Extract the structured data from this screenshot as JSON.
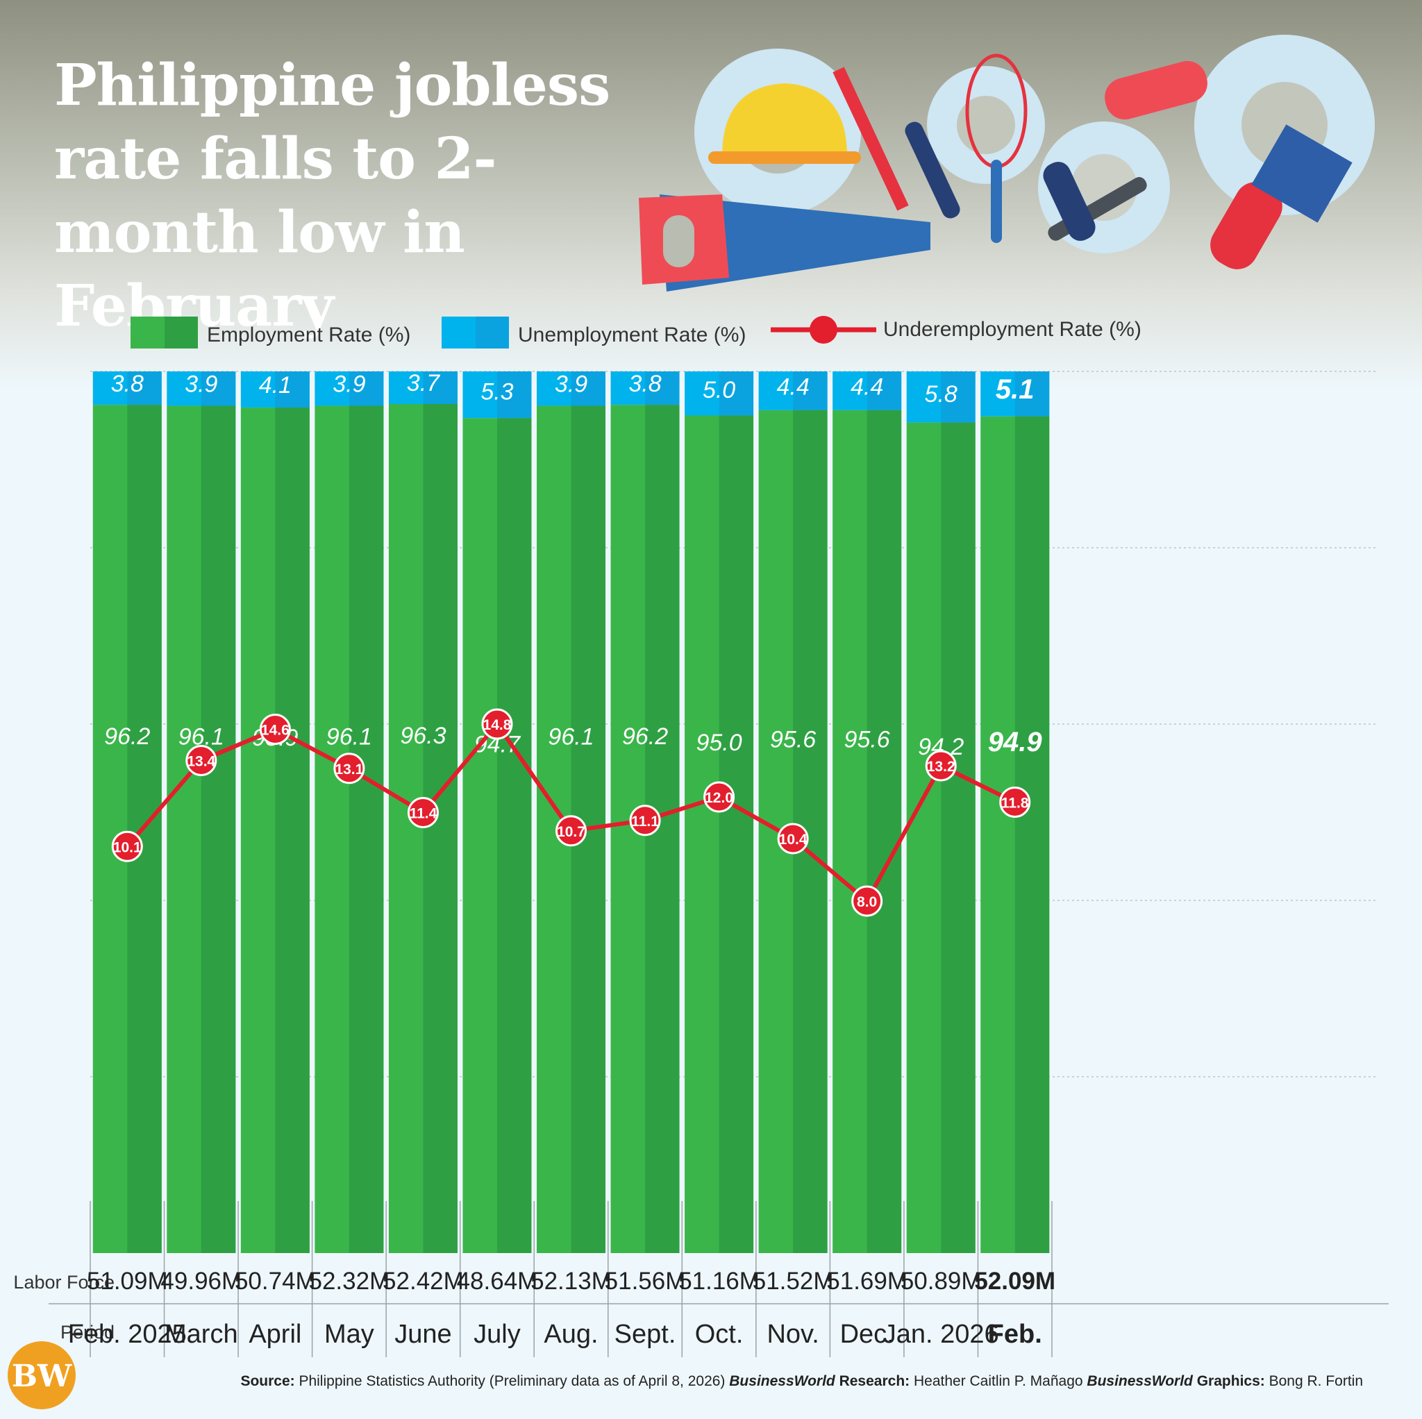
{
  "title": "Philippine jobless rate falls to 2-month low in February",
  "legend": {
    "employment": "Employment  Rate (%)",
    "unemployment": "Unemployment Rate (%)",
    "underemployment": "Underemployment Rate (%)"
  },
  "row_labels": {
    "labor_force": "Labor Force",
    "period": "Period"
  },
  "footer": {
    "source_label": "Source:",
    "source_text": " Philippine Statistics Authority (Preliminary data as of April 8, 2026)",
    "research_brand": "BusinessWorld",
    "research_label": " Research:",
    "research_text": " Heather Caitlin P. Mañago",
    "graphics_brand": "BusinessWorld",
    "graphics_label": " Graphics:",
    "graphics_text": " Bong R. Fortin"
  },
  "logo_text": "BW",
  "colors": {
    "employment": "#3ab54a",
    "employment_dark": "#2ea043",
    "unemployment": "#00b3ec",
    "unemployment_dark": "#0aa3e0",
    "underemployment": "#e31e2d",
    "logo": "#f0a020"
  },
  "chart_data": {
    "type": "bar",
    "stacked": true,
    "categories": [
      "Feb. 2025",
      "March",
      "April",
      "May",
      "June",
      "July",
      "Aug.",
      "Sept.",
      "Oct.",
      "Nov.",
      "Dec.",
      "Jan. 2026",
      "Feb."
    ],
    "labor_force": [
      "51.09M",
      "49.96M",
      "50.74M",
      "52.32M",
      "52.42M",
      "48.64M",
      "52.13M",
      "51.56M",
      "51.16M",
      "51.52M",
      "51.69M",
      "50.89M",
      "52.09M"
    ],
    "series": [
      {
        "name": "Employment  Rate (%)",
        "type": "bar",
        "values": [
          96.2,
          96.1,
          95.9,
          96.1,
          96.3,
          94.7,
          96.1,
          96.2,
          95.0,
          95.6,
          95.6,
          94.2,
          94.9
        ]
      },
      {
        "name": "Unemployment Rate (%)",
        "type": "bar",
        "values": [
          3.8,
          3.9,
          4.1,
          3.9,
          3.7,
          5.3,
          3.9,
          3.8,
          5.0,
          4.4,
          4.4,
          5.8,
          5.1
        ]
      },
      {
        "name": "Underemployment Rate (%)",
        "type": "line",
        "values": [
          10.1,
          13.4,
          14.6,
          13.1,
          11.4,
          14.8,
          10.7,
          11.1,
          12.0,
          10.4,
          8.0,
          13.2,
          11.8
        ]
      }
    ],
    "employment_labels": [
      "96.2",
      "96.1",
      "95.9",
      "96.1",
      "96.3",
      "94.7",
      "96.1",
      "96.2",
      "95.0",
      "95.6",
      "95.6",
      "94.2",
      "94.9"
    ],
    "unemployment_labels": [
      "3.8",
      "3.9",
      "4.1",
      "3.9",
      "3.7",
      "5.3",
      "3.9",
      "3.8",
      "5.0",
      "4.4",
      "4.4",
      "5.8",
      "5.1"
    ],
    "underemployment_labels": [
      "10.1",
      "13.4",
      "14.6",
      "13.1",
      "11.4",
      "14.8",
      "10.7",
      "11.1",
      "12.0",
      "10.4",
      "8.0",
      "13.2",
      "11.8"
    ],
    "highlight_last": true,
    "ylim": [
      0,
      100
    ],
    "grid": true,
    "legend_position": "top"
  }
}
